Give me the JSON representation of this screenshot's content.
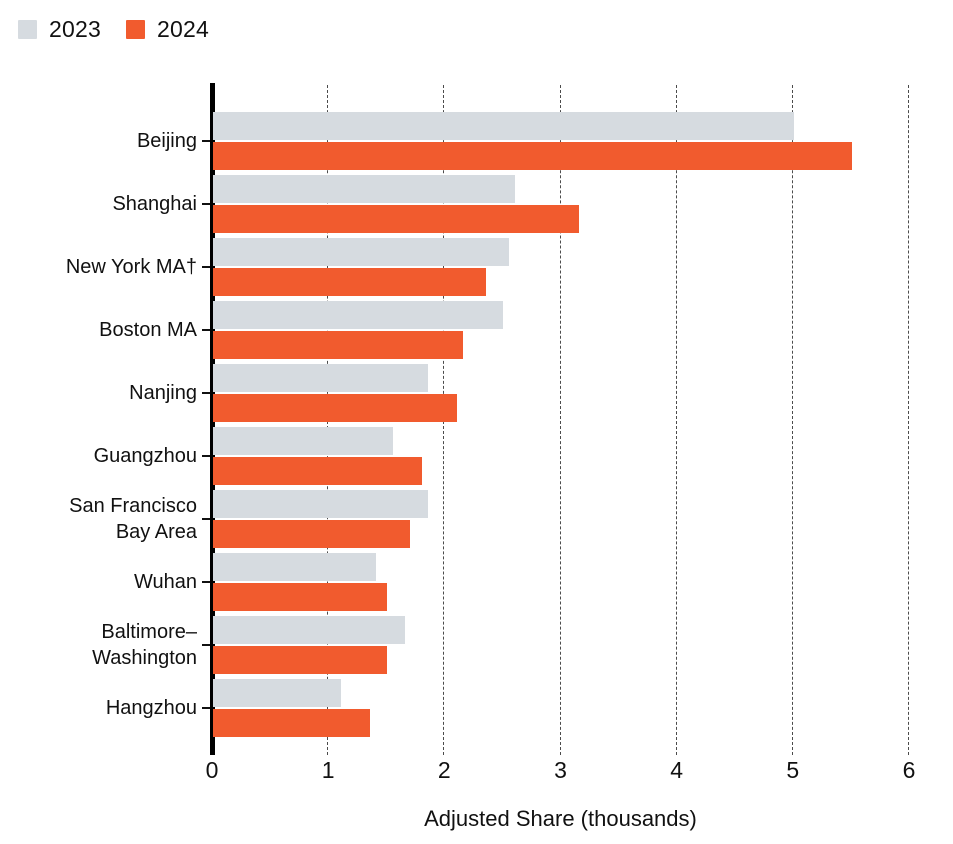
{
  "chart_data": {
    "type": "bar",
    "orientation": "horizontal",
    "title": "",
    "xlabel": "Adjusted Share (thousands)",
    "ylabel": "",
    "xlim": [
      0,
      6
    ],
    "xticks": [
      0,
      1,
      2,
      3,
      4,
      5,
      6
    ],
    "grid": "vertical-dashed",
    "legend_position": "top-left",
    "categories": [
      "Beijing",
      "Shanghai",
      "New York MA†",
      "Boston MA",
      "Nanjing",
      "Guangzhou",
      "San Francisco Bay Area",
      "Wuhan",
      "Baltimore–Washington",
      "Hangzhou"
    ],
    "label_lines": [
      [
        "Beijing"
      ],
      [
        "Shanghai"
      ],
      [
        "New York MA†"
      ],
      [
        "Boston MA"
      ],
      [
        "Nanjing"
      ],
      [
        "Guangzhou"
      ],
      [
        "San Francisco",
        "Bay Area"
      ],
      [
        "Wuhan"
      ],
      [
        "Baltimore–",
        "Washington"
      ],
      [
        "Hangzhou"
      ]
    ],
    "series": [
      {
        "name": "2023",
        "color": "#d6dbe0",
        "values": [
          5.0,
          2.6,
          2.55,
          2.5,
          1.85,
          1.55,
          1.85,
          1.4,
          1.65,
          1.1
        ]
      },
      {
        "name": "2024",
        "color": "#f15b2e",
        "values": [
          5.5,
          3.15,
          2.35,
          2.15,
          2.1,
          1.8,
          1.7,
          1.5,
          1.5,
          1.35
        ]
      }
    ]
  },
  "colors": {
    "background": "#ffffff",
    "text": "#111111",
    "axis": "#000000",
    "gridline": "#4b4b4b"
  }
}
